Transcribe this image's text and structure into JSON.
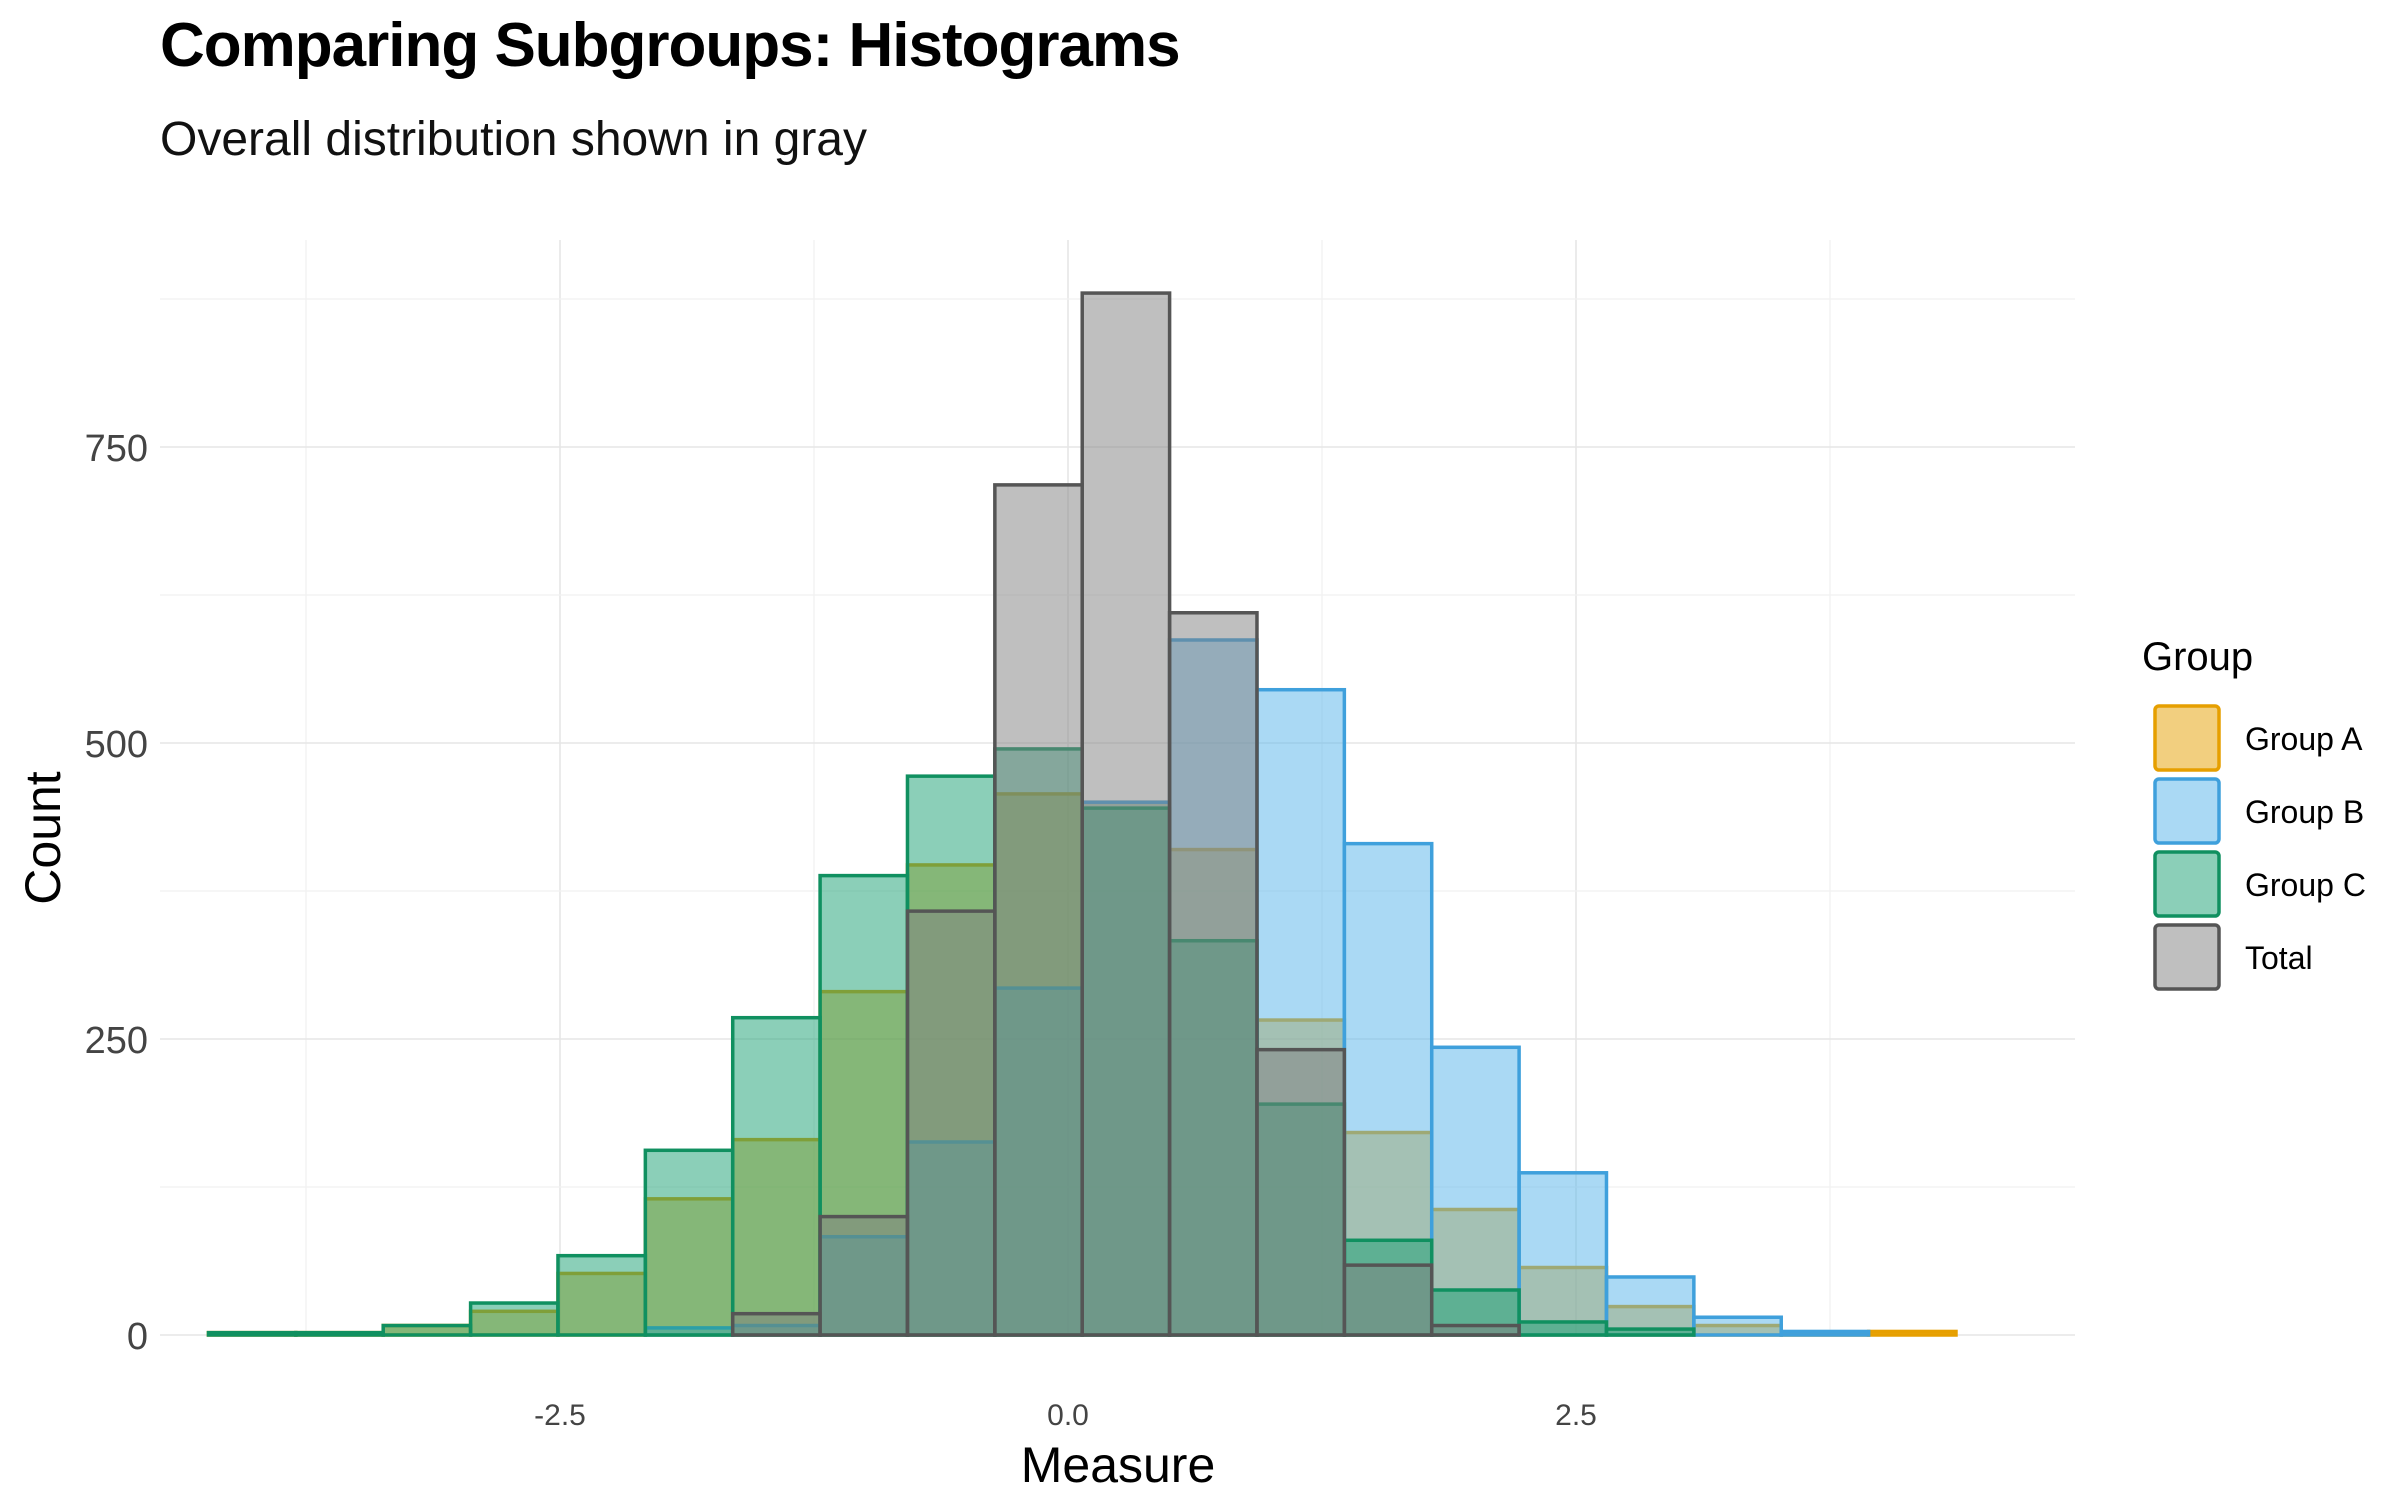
{
  "chart_data": {
    "type": "histogram",
    "title": "Comparing Subgroups: Histograms",
    "subtitle": "Overall distribution shown in gray",
    "xlabel": "Measure",
    "ylabel": "Count",
    "xlim": [
      -4.6,
      5.0
    ],
    "ylim": [
      0,
      880
    ],
    "x_ticks": [
      -2.5,
      0.0,
      2.5
    ],
    "x_tick_labels": [
      "-2.5",
      "0.0",
      "2.5"
    ],
    "y_ticks": [
      0,
      250,
      500,
      750
    ],
    "y_tick_labels": [
      "0",
      "250",
      "500",
      "750"
    ],
    "grid": true,
    "legend": {
      "title": "Group",
      "position": "right"
    },
    "bin_edges": [
      -4.23,
      -3.8,
      -3.37,
      -2.94,
      -2.51,
      -2.08,
      -1.65,
      -1.22,
      -0.79,
      -0.36,
      0.07,
      0.5,
      0.93,
      1.36,
      1.79,
      2.22,
      2.65,
      3.08,
      3.51,
      3.94,
      4.37
    ],
    "series": [
      {
        "name": "Group A",
        "fill": "#E69F00",
        "stroke": "#E69F00",
        "values": [
          2,
          2,
          8,
          20,
          52,
          115,
          165,
          290,
          397,
          457,
          450,
          410,
          266,
          171,
          106,
          57,
          24,
          8,
          2,
          3
        ]
      },
      {
        "name": "Group B",
        "fill": "#56B4E9",
        "stroke": "#3FA0DC",
        "values": [
          0,
          0,
          0,
          0,
          0,
          6,
          8,
          83,
          163,
          293,
          450,
          587,
          545,
          415,
          243,
          137,
          49,
          15,
          3,
          0
        ]
      },
      {
        "name": "Group C",
        "fill": "#17A072",
        "stroke": "#109060",
        "values": [
          2,
          2,
          8,
          27,
          67,
          156,
          268,
          388,
          472,
          495,
          445,
          333,
          195,
          80,
          38,
          11,
          5,
          0,
          0,
          0
        ]
      },
      {
        "name": "Total",
        "fill": "#7f7f7f",
        "stroke": "#555555",
        "values": [
          0,
          0,
          0,
          0,
          0,
          0,
          18,
          100,
          358,
          718,
          880,
          610,
          241,
          59,
          8,
          0,
          0,
          0,
          0,
          0
        ]
      }
    ]
  }
}
